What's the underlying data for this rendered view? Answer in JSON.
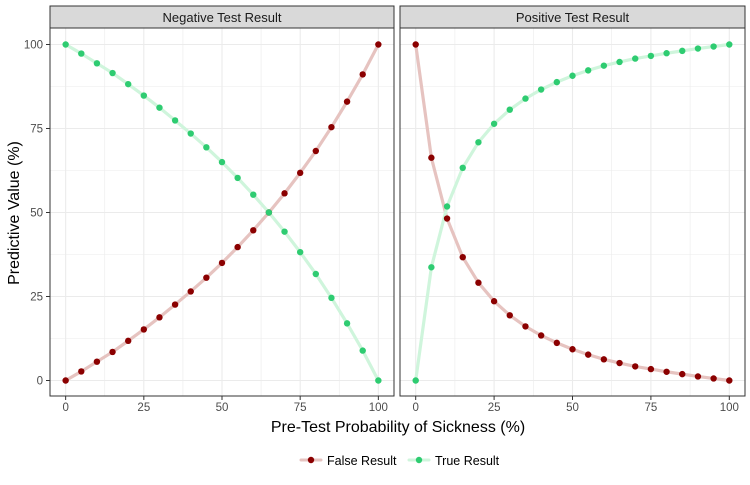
{
  "colors": {
    "false_result": "#8B0000",
    "true_result": "#2ECC71",
    "false_line": "#E6C3C0",
    "true_line": "#CFF5DC",
    "strip_fill": "#D9D9D9",
    "grid": "#EBEBEB"
  },
  "chart_data": {
    "type": "line",
    "xlabel": "Pre-Test Probability of Sickness (%)",
    "ylabel": "Predictive Value (%)",
    "xlim": [
      0,
      100
    ],
    "ylim": [
      0,
      100
    ],
    "xticks": [
      0,
      25,
      50,
      75,
      100
    ],
    "yticks": [
      0,
      25,
      50,
      75,
      100
    ],
    "grid": true,
    "legend": {
      "position": "bottom",
      "entries": [
        "False Result",
        "True Result"
      ]
    },
    "x": [
      0,
      5,
      10,
      15,
      20,
      25,
      30,
      35,
      40,
      45,
      50,
      55,
      60,
      65,
      70,
      75,
      80,
      85,
      90,
      95,
      100
    ],
    "panels": [
      {
        "title": "Negative Test Result",
        "series": [
          {
            "name": "False Result",
            "values": [
              0,
              2.7,
              5.6,
              8.5,
              11.8,
              15.2,
              18.8,
              22.6,
              26.5,
              30.6,
              35.0,
              39.7,
              44.7,
              50.0,
              55.7,
              61.8,
              68.3,
              75.4,
              83.0,
              91.1,
              100
            ]
          },
          {
            "name": "True Result",
            "values": [
              100,
              97.3,
              94.4,
              91.5,
              88.2,
              84.8,
              81.2,
              77.4,
              73.5,
              69.4,
              65.0,
              60.3,
              55.3,
              50.0,
              44.3,
              38.2,
              31.7,
              24.6,
              17.0,
              8.9,
              0
            ]
          }
        ]
      },
      {
        "title": "Positive Test Result",
        "series": [
          {
            "name": "False Result",
            "values": [
              100,
              66.3,
              48.2,
              36.7,
              29.1,
              23.6,
              19.4,
              16.1,
              13.4,
              11.2,
              9.3,
              7.7,
              6.3,
              5.2,
              4.2,
              3.4,
              2.6,
              1.9,
              1.2,
              0.6,
              0
            ]
          },
          {
            "name": "True Result",
            "values": [
              0,
              33.7,
              51.8,
              63.3,
              70.9,
              76.4,
              80.6,
              83.9,
              86.6,
              88.8,
              90.7,
              92.3,
              93.7,
              94.8,
              95.8,
              96.6,
              97.4,
              98.1,
              98.8,
              99.4,
              100
            ]
          }
        ]
      }
    ]
  }
}
